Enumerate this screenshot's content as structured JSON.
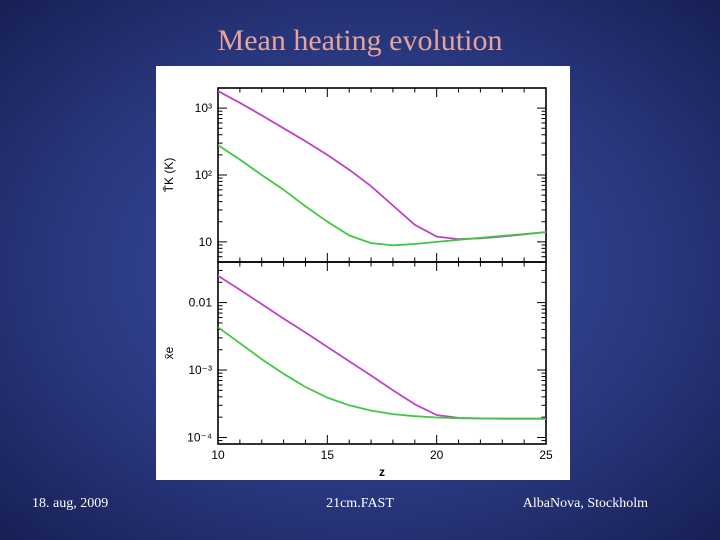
{
  "slide": {
    "title": "Mean heating evolution",
    "footer_left": "18. aug, 2009",
    "footer_center": "21cm.FAST",
    "footer_right": "AlbaNova, Stockholm",
    "background_color": "#29377e",
    "title_color": "#e6a39a"
  },
  "chart_data": [
    {
      "type": "line",
      "panel": "top",
      "ylabel": "T̄K (K)",
      "xlabel": "",
      "y_scale": "log",
      "xlim": [
        10,
        25
      ],
      "ylim": [
        5,
        2000
      ],
      "y_ticks": [
        {
          "value": 10,
          "label": "10"
        },
        {
          "value": 100,
          "label": "10²"
        },
        {
          "value": 1000,
          "label": "10³"
        }
      ],
      "series": [
        {
          "color": "#c040c8",
          "x": [
            10,
            11,
            12,
            13,
            14,
            15,
            16,
            17,
            18,
            19,
            20,
            21,
            22,
            23,
            24,
            25
          ],
          "y": [
            1800,
            1200,
            780,
            500,
            320,
            200,
            120,
            68,
            35,
            18,
            12,
            11,
            11.3,
            12,
            13,
            14
          ]
        },
        {
          "color": "#40c840",
          "x": [
            10,
            11,
            12,
            13,
            14,
            15,
            16,
            17,
            18,
            19,
            20,
            21,
            22,
            23,
            24,
            25
          ],
          "y": [
            280,
            170,
            100,
            60,
            34,
            20,
            12.5,
            9.6,
            8.9,
            9.3,
            10,
            10.7,
            11.5,
            12.3,
            13.1,
            14
          ]
        }
      ]
    },
    {
      "type": "line",
      "panel": "bottom",
      "ylabel": "x̄e",
      "xlabel": "z",
      "y_scale": "log",
      "xlim": [
        10,
        25
      ],
      "ylim": [
        8e-05,
        0.04
      ],
      "x_ticks": [
        10,
        15,
        20,
        25
      ],
      "y_ticks": [
        {
          "value": 0.0001,
          "label": "10⁻⁴"
        },
        {
          "value": 0.001,
          "label": "10⁻³"
        },
        {
          "value": 0.01,
          "label": "0.01"
        }
      ],
      "series": [
        {
          "color": "#c040c8",
          "x": [
            10,
            11,
            12,
            13,
            14,
            15,
            16,
            17,
            18,
            19,
            20,
            21,
            22,
            23,
            24,
            25
          ],
          "y": [
            0.025,
            0.0155,
            0.0095,
            0.0058,
            0.0036,
            0.0022,
            0.00135,
            0.00083,
            0.0005,
            0.00031,
            0.000215,
            0.000195,
            0.000192,
            0.00019,
            0.00019,
            0.00019
          ]
        },
        {
          "color": "#40c840",
          "x": [
            10,
            11,
            12,
            13,
            14,
            15,
            16,
            17,
            18,
            19,
            20,
            21,
            22,
            23,
            24,
            25
          ],
          "y": [
            0.0043,
            0.0025,
            0.00145,
            0.00088,
            0.00056,
            0.00039,
            0.0003,
            0.00025,
            0.000222,
            0.000207,
            0.000198,
            0.000193,
            0.000191,
            0.00019,
            0.00019,
            0.00019
          ]
        }
      ]
    }
  ]
}
